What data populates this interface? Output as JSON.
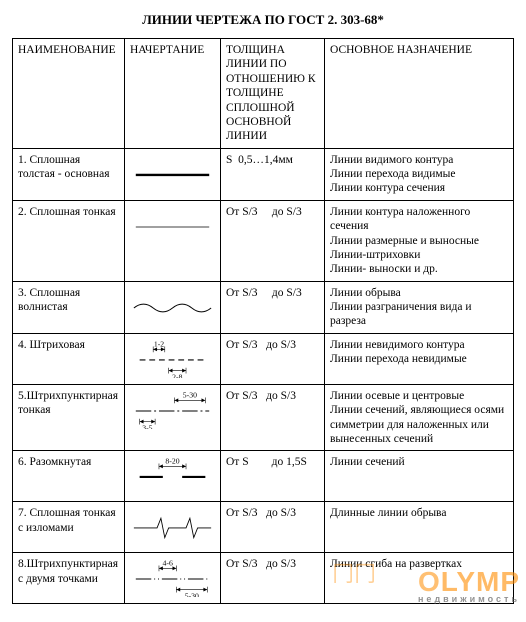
{
  "title": "ЛИНИИ ЧЕРТЕЖА ПО ГОСТ 2. 303-68*",
  "headers": {
    "name": "НАИМЕНОВАНИЕ",
    "depiction": "НАЧЕРТАНИЕ",
    "thickness": "ТОЛЩИНА ЛИНИИ ПО ОТНОШЕНИЮ К ТОЛЩИНЕ СПЛОШНОЙ ОСНОВНОЙ ЛИНИИ",
    "purpose": "ОСНОВНОЕ НАЗНАЧЕНИЕ"
  },
  "rows": [
    {
      "name": "1.  Сплошная толстая - основная",
      "thickness": "S  0,5…1,4мм",
      "purposes": [
        "Линии видимого контура",
        "Линии перехода видимые",
        "Линии контура сечения"
      ],
      "line": {
        "kind": "solid-thick",
        "stroke": "#000",
        "width": 2.4
      }
    },
    {
      "name": "2. Сплошная тонкая",
      "thickness": "От S/3     до S/3",
      "purposes": [
        "Линии контура наложенного сечения",
        "Линии размерные и выносные",
        "Линии-штриховки",
        "Линии- выноски и др."
      ],
      "line": {
        "kind": "solid-thin",
        "stroke": "#000",
        "width": 0.8
      }
    },
    {
      "name": "3.  Сплошная волнистая",
      "thickness": "От S/3     до S/3",
      "purposes": [
        "Линии обрыва",
        "Линии разграничения вида и разреза"
      ],
      "line": {
        "kind": "wavy",
        "stroke": "#000",
        "width": 1
      }
    },
    {
      "name": "4. Штриховая",
      "thickness": "От S/3   до S/3",
      "purposes": [
        "Линии невидимого контура",
        "Линии перехода невидимые"
      ],
      "line": {
        "kind": "dashed",
        "stroke": "#000",
        "width": 1.2,
        "dash": "6 4",
        "dim_top": "1-2",
        "dim_bot": "2-8"
      }
    },
    {
      "name": "5.Штрихпунктирная тонкая",
      "thickness": "От S/3   до S/3",
      "purposes": [
        "Линии осевые и центровые",
        "Линии сечений, являющиеся осями симметрии для наложенных или вынесенных сечений"
      ],
      "line": {
        "kind": "dash-dot",
        "stroke": "#000",
        "width": 1,
        "dash": "16 3 2 3",
        "dim_top": "5-30",
        "dim_bot": "3-5"
      }
    },
    {
      "name": "6. Разомкнутая",
      "thickness": "От S        до 1,5S",
      "purposes": [
        "Линии сечений"
      ],
      "line": {
        "kind": "open",
        "stroke": "#000",
        "width": 2.2,
        "dim_top": "8-20"
      }
    },
    {
      "name": "7. Сплошная тонкая с изломами",
      "thickness": "От S/3   до S/3",
      "purposes": [
        "Длинные линии обрыва"
      ],
      "line": {
        "kind": "zigzag",
        "stroke": "#000",
        "width": 0.9
      }
    },
    {
      "name": "8.Штрихпунктирная с двумя точками",
      "thickness": "От S/3   до S/3",
      "purposes": [
        "Линии сгиба на развертках"
      ],
      "line": {
        "kind": "dash-2dot",
        "stroke": "#000",
        "width": 1,
        "dash": "16 3 1 3 1 3",
        "dim_top": "4-6",
        "dim_bot": "5-30"
      }
    }
  ],
  "watermark": {
    "text": "OLYMP",
    "sub": "недвижимость",
    "color": "#ff8c00"
  }
}
